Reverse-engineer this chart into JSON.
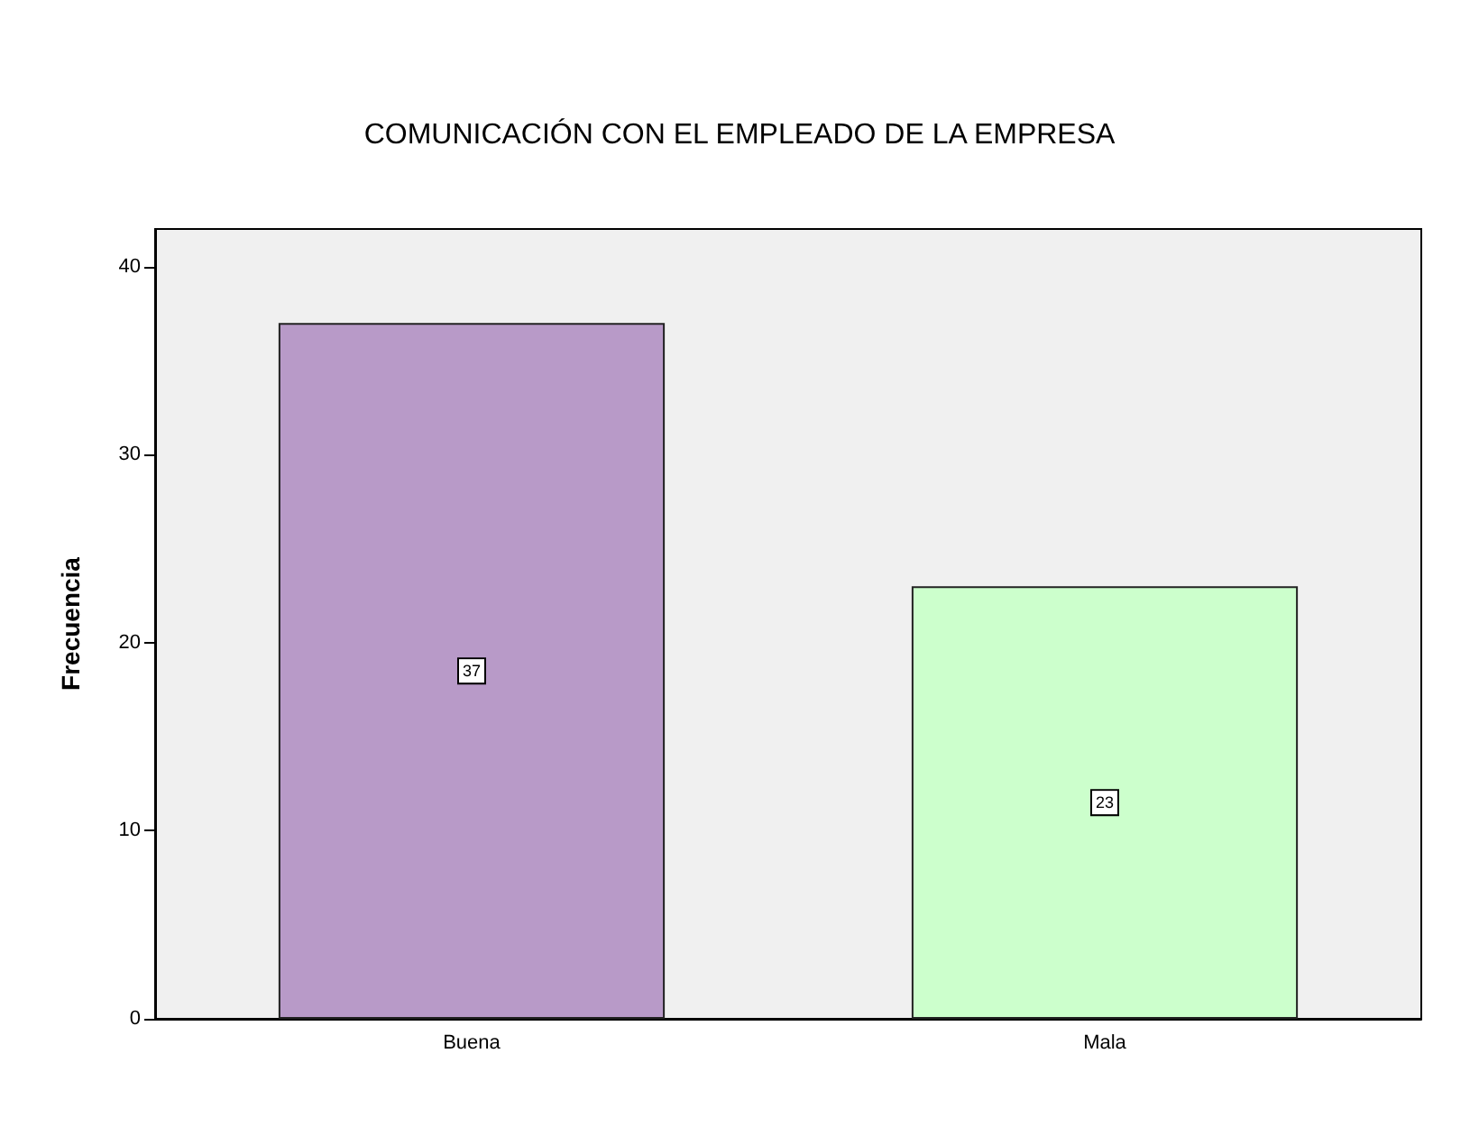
{
  "chart_data": {
    "type": "bar",
    "title": "COMUNICACIÓN CON EL EMPLEADO DE LA EMPRESA",
    "ylabel": "Frecuencia",
    "categories": [
      "Buena",
      "Mala"
    ],
    "series": [
      {
        "colors": [
          "#b89ac8",
          "#ccffcc"
        ],
        "values": [
          37,
          23
        ]
      }
    ],
    "ylim": [
      0,
      42
    ],
    "yticks": [
      0,
      10,
      20,
      30,
      40
    ],
    "grid": false,
    "data_labels": true
  }
}
